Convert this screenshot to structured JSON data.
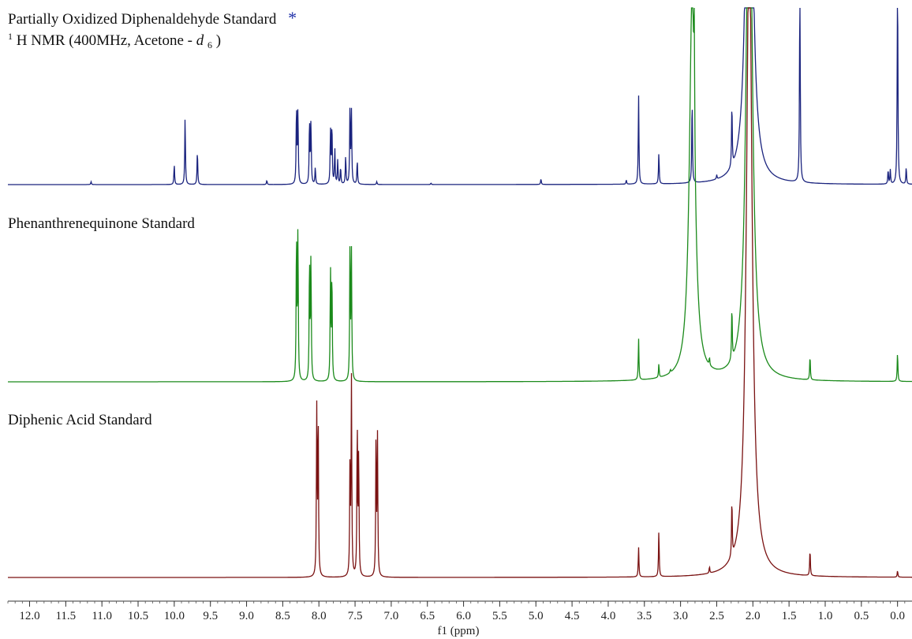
{
  "chart_data": {
    "type": "line",
    "title": "",
    "xlabel": "f1 (ppm)",
    "ylabel": "",
    "xlim": [
      12.3,
      -0.2
    ],
    "x_reversed": true,
    "grid": false,
    "ticks": [
      "12.0",
      "11.5",
      "11.0",
      "10.5",
      "10.0",
      "9.5",
      "9.0",
      "8.5",
      "8.0",
      "7.5",
      "7.0",
      "6.5",
      "6.0",
      "5.5",
      "5.0",
      "4.5",
      "4.0",
      "3.5",
      "3.0",
      "2.5",
      "2.0",
      "1.5",
      "1.0",
      "0.5",
      "0.0"
    ],
    "series": [
      {
        "name": "Partially Oxidized Diphenaldehyde Standard",
        "marker": "*",
        "subtitle_parts": [
          "1",
          "H NMR (400MHz, Acetone - ",
          "d",
          "6",
          ")"
        ],
        "color": "#1a237e",
        "peaks": [
          {
            "ppm": 11.15,
            "h": 0.02
          },
          {
            "ppm": 10.0,
            "h": 0.14
          },
          {
            "ppm": 9.85,
            "h": 0.48
          },
          {
            "ppm": 9.68,
            "h": 0.24
          },
          {
            "ppm": 8.72,
            "h": 0.03
          },
          {
            "ppm": 8.31,
            "h": 0.55
          },
          {
            "ppm": 8.29,
            "h": 0.52
          },
          {
            "ppm": 8.13,
            "h": 0.45
          },
          {
            "ppm": 8.11,
            "h": 0.44
          },
          {
            "ppm": 8.05,
            "h": 0.12
          },
          {
            "ppm": 7.84,
            "h": 0.38
          },
          {
            "ppm": 7.82,
            "h": 0.42
          },
          {
            "ppm": 7.78,
            "h": 0.25
          },
          {
            "ppm": 7.74,
            "h": 0.17
          },
          {
            "ppm": 7.7,
            "h": 0.12
          },
          {
            "ppm": 7.63,
            "h": 0.2
          },
          {
            "ppm": 7.57,
            "h": 0.55
          },
          {
            "ppm": 7.55,
            "h": 0.5
          },
          {
            "ppm": 7.47,
            "h": 0.17
          },
          {
            "ppm": 7.2,
            "h": 0.02
          },
          {
            "ppm": 6.45,
            "h": 0.01
          },
          {
            "ppm": 4.93,
            "h": 0.04
          },
          {
            "ppm": 3.75,
            "h": 0.03
          },
          {
            "ppm": 3.58,
            "h": 0.63
          },
          {
            "ppm": 3.3,
            "h": 0.22
          },
          {
            "ppm": 2.84,
            "h": 0.6
          },
          {
            "ppm": 2.5,
            "h": 0.03
          },
          {
            "ppm": 2.29,
            "h": 0.45
          },
          {
            "ppm": 2.05,
            "h": 4.0
          },
          {
            "ppm": 1.35,
            "h": 1.6
          },
          {
            "ppm": 0.13,
            "h": 0.1
          },
          {
            "ppm": 0.1,
            "h": 0.1
          },
          {
            "ppm": 0.0,
            "h": 1.6
          },
          {
            "ppm": -0.12,
            "h": 0.12
          }
        ]
      },
      {
        "name": "Phenanthrenequinone Standard",
        "color": "#1b8a1b",
        "peaks": [
          {
            "ppm": 8.31,
            "h": 0.95
          },
          {
            "ppm": 8.29,
            "h": 0.98
          },
          {
            "ppm": 8.13,
            "h": 0.79
          },
          {
            "ppm": 8.11,
            "h": 0.81
          },
          {
            "ppm": 7.84,
            "h": 0.72
          },
          {
            "ppm": 7.82,
            "h": 0.7
          },
          {
            "ppm": 7.57,
            "h": 0.9
          },
          {
            "ppm": 7.55,
            "h": 0.82
          },
          {
            "ppm": 3.58,
            "h": 0.27
          },
          {
            "ppm": 3.3,
            "h": 0.09
          },
          {
            "ppm": 3.14,
            "h": 0.02
          },
          {
            "ppm": 2.84,
            "h": 2.5
          },
          {
            "ppm": 2.81,
            "h": 0.68
          },
          {
            "ppm": 2.6,
            "h": 0.05
          },
          {
            "ppm": 2.29,
            "h": 0.35
          },
          {
            "ppm": 2.05,
            "h": 4.0
          },
          {
            "ppm": 1.21,
            "h": 0.16
          },
          {
            "ppm": 0.0,
            "h": 0.19
          }
        ]
      },
      {
        "name": "Diphenic Acid Standard",
        "color": "#7a1212",
        "peaks": [
          {
            "ppm": 8.03,
            "h": 1.0
          },
          {
            "ppm": 8.01,
            "h": 0.98
          },
          {
            "ppm": 7.57,
            "h": 0.69
          },
          {
            "ppm": 7.55,
            "h": 1.18
          },
          {
            "ppm": 7.47,
            "h": 0.93
          },
          {
            "ppm": 7.45,
            "h": 0.74
          },
          {
            "ppm": 7.21,
            "h": 0.85
          },
          {
            "ppm": 7.19,
            "h": 0.83
          },
          {
            "ppm": 3.58,
            "h": 0.18
          },
          {
            "ppm": 3.3,
            "h": 0.28
          },
          {
            "ppm": 2.6,
            "h": 0.04
          },
          {
            "ppm": 2.29,
            "h": 0.35
          },
          {
            "ppm": 2.05,
            "h": 4.0
          },
          {
            "ppm": 1.21,
            "h": 0.16
          },
          {
            "ppm": 0.0,
            "h": 0.04
          }
        ]
      }
    ]
  }
}
